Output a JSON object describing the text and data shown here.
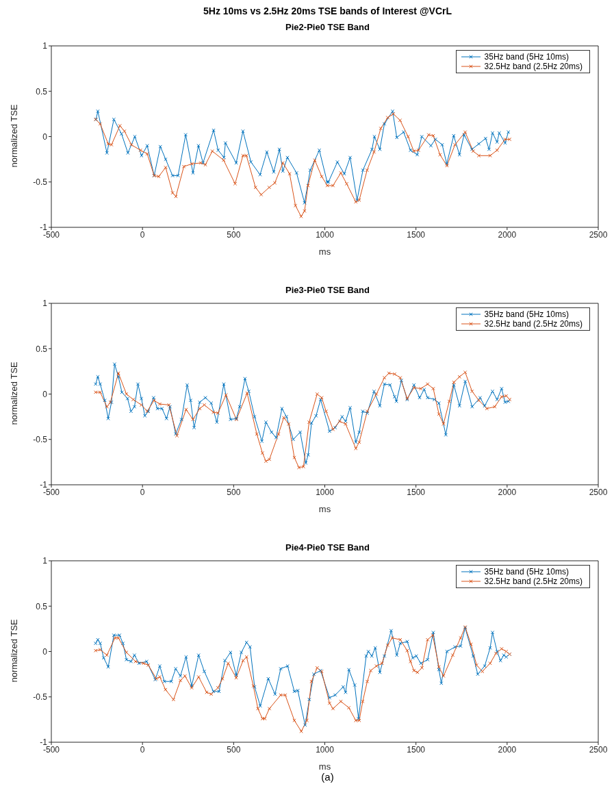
{
  "chart_data": [
    {
      "type": "line",
      "title": "5Hz 10ms vs 2.5Hz 20ms TSE bands of Interest @VCrL",
      "subtitle": "Pie2-Pie0 TSE Band",
      "xlabel": "ms",
      "ylabel": "normalized TSE",
      "xlim": [
        -500,
        2500
      ],
      "xticks": [
        -500,
        0,
        500,
        1000,
        1500,
        2000,
        2500
      ],
      "ylim": [
        -1,
        1
      ],
      "yticks": [
        -1,
        -0.5,
        0,
        0.5,
        1
      ],
      "legend": "top right",
      "marker": "cross",
      "line_style": "solid",
      "series": [
        {
          "name": "35Hz band (5Hz 10ms)",
          "color": "#0072bd",
          "x": [
            -255,
            -245,
            -195,
            -157,
            -115,
            -80,
            -42,
            -5,
            26,
            64,
            98,
            127,
            165,
            195,
            237,
            277,
            307,
            332,
            390,
            415,
            447,
            455,
            514,
            551,
            595,
            645,
            682,
            720,
            751,
            770,
            795,
            845,
            889,
            920,
            970,
            1013,
            1020,
            1069,
            1107,
            1139,
            1177,
            1209,
            1259,
            1272,
            1302,
            1327,
            1372,
            1395,
            1432,
            1470,
            1507,
            1532,
            1582,
            1607,
            1644,
            1669,
            1707,
            1739,
            1764,
            1807,
            1845,
            1882,
            1901,
            1920,
            1945,
            1957,
            1989,
            2007
          ],
          "values": [
            0.19,
            0.28,
            -0.18,
            0.19,
            0.03,
            -0.18,
            0.0,
            -0.21,
            -0.1,
            -0.43,
            -0.11,
            -0.25,
            -0.43,
            -0.43,
            0.02,
            -0.4,
            -0.1,
            -0.29,
            0.07,
            -0.15,
            -0.23,
            -0.07,
            -0.29,
            0.06,
            -0.28,
            -0.42,
            -0.17,
            -0.39,
            -0.14,
            -0.38,
            -0.23,
            -0.4,
            -0.73,
            -0.37,
            -0.15,
            -0.5,
            -0.5,
            -0.28,
            -0.41,
            -0.23,
            -0.7,
            -0.37,
            -0.14,
            0.0,
            -0.14,
            0.14,
            0.28,
            -0.01,
            0.05,
            -0.15,
            -0.2,
            0.0,
            -0.1,
            -0.03,
            -0.09,
            -0.3,
            0.01,
            -0.2,
            0.02,
            -0.14,
            -0.08,
            -0.02,
            -0.14,
            0.04,
            -0.06,
            0.04,
            -0.07,
            0.05
          ]
        },
        {
          "name": "32.5Hz band (2.5Hz 20ms)",
          "color": "#d95319",
          "x": [
            -257,
            -232,
            -188,
            -170,
            -124,
            -99,
            -61,
            -11,
            26,
            64,
            89,
            127,
            165,
            183,
            227,
            271,
            320,
            345,
            383,
            445,
            508,
            551,
            570,
            620,
            651,
            695,
            726,
            770,
            807,
            839,
            870,
            889,
            908,
            945,
            983,
            1014,
            1045,
            1088,
            1120,
            1170,
            1189,
            1232,
            1270,
            1307,
            1345,
            1376,
            1413,
            1457,
            1488,
            1514,
            1570,
            1595,
            1632,
            1670,
            1714,
            1770,
            1814,
            1845,
            1907,
            1945,
            1989,
            2014
          ],
          "values": [
            0.19,
            0.14,
            -0.08,
            -0.09,
            0.12,
            0.06,
            -0.09,
            -0.15,
            -0.19,
            -0.43,
            -0.44,
            -0.34,
            -0.62,
            -0.66,
            -0.33,
            -0.3,
            -0.29,
            -0.31,
            -0.16,
            -0.26,
            -0.52,
            -0.21,
            -0.21,
            -0.56,
            -0.64,
            -0.56,
            -0.51,
            -0.29,
            -0.41,
            -0.76,
            -0.88,
            -0.82,
            -0.54,
            -0.26,
            -0.44,
            -0.54,
            -0.54,
            -0.4,
            -0.52,
            -0.72,
            -0.7,
            -0.37,
            -0.17,
            0.09,
            0.21,
            0.25,
            0.18,
            0.0,
            -0.16,
            -0.15,
            0.02,
            0.01,
            -0.2,
            -0.32,
            -0.09,
            0.05,
            -0.16,
            -0.21,
            -0.21,
            -0.15,
            -0.03,
            -0.03
          ]
        }
      ]
    },
    {
      "type": "line",
      "title": "Pie3-Pie0 TSE Band",
      "xlabel": "ms",
      "ylabel": "normalized TSE",
      "xlim": [
        -500,
        2500
      ],
      "xticks": [
        -500,
        0,
        500,
        1000,
        1500,
        2000,
        2500
      ],
      "ylim": [
        -1,
        1
      ],
      "yticks": [
        -1,
        -0.5,
        0,
        0.5,
        1
      ],
      "legend": "top right",
      "marker": "cross",
      "line_style": "solid",
      "series": [
        {
          "name": "35Hz band (5Hz 10ms)",
          "color": "#0072bd",
          "x": [
            -257,
            -245,
            -232,
            -207,
            -188,
            -170,
            -153,
            -132,
            -113,
            -82,
            -63,
            -44,
            -25,
            -6,
            13,
            32,
            61,
            82,
            107,
            132,
            151,
            182,
            214,
            245,
            264,
            283,
            314,
            345,
            377,
            408,
            446,
            483,
            515,
            533,
            562,
            583,
            615,
            655,
            677,
            708,
            733,
            765,
            790,
            827,
            865,
            896,
            909,
            927,
            952,
            977,
            1026,
            1057,
            1095,
            1114,
            1139,
            1170,
            1189,
            1208,
            1233,
            1270,
            1302,
            1327,
            1358,
            1383,
            1393,
            1420,
            1452,
            1489,
            1520,
            1545,
            1564,
            1601,
            1626,
            1664,
            1708,
            1739,
            1770,
            1808,
            1852,
            1877,
            1920,
            1945,
            1970,
            1989,
            2007
          ],
          "values": [
            0.11,
            0.19,
            0.11,
            -0.07,
            -0.27,
            -0.09,
            0.33,
            0.19,
            0.02,
            -0.05,
            -0.19,
            -0.14,
            0.11,
            -0.05,
            -0.24,
            -0.19,
            -0.04,
            -0.16,
            -0.16,
            -0.27,
            -0.14,
            -0.44,
            -0.28,
            0.1,
            -0.07,
            -0.37,
            -0.09,
            -0.04,
            -0.1,
            -0.31,
            0.11,
            -0.28,
            -0.27,
            -0.14,
            0.17,
            0.03,
            -0.25,
            -0.52,
            -0.31,
            -0.42,
            -0.48,
            -0.16,
            -0.25,
            -0.5,
            -0.42,
            -0.76,
            -0.67,
            -0.32,
            -0.24,
            -0.06,
            -0.41,
            -0.37,
            -0.25,
            -0.3,
            -0.15,
            -0.53,
            -0.42,
            -0.19,
            -0.21,
            0.03,
            -0.13,
            0.11,
            0.1,
            -0.03,
            -0.08,
            0.15,
            -0.06,
            0.1,
            -0.04,
            0.05,
            -0.04,
            -0.06,
            -0.1,
            -0.45,
            0.1,
            -0.13,
            0.14,
            -0.14,
            -0.04,
            -0.13,
            0.03,
            -0.06,
            0.06,
            -0.09,
            -0.08
          ]
        },
        {
          "name": "32.5Hz band (2.5Hz 20ms)",
          "color": "#d95319",
          "x": [
            -257,
            -232,
            -195,
            -176,
            -132,
            -88,
            -51,
            -6,
            26,
            63,
            95,
            145,
            189,
            239,
            277,
            314,
            339,
            389,
            414,
            458,
            515,
            574,
            627,
            658,
            677,
            696,
            746,
            775,
            802,
            833,
            858,
            883,
            914,
            958,
            983,
            1007,
            1045,
            1082,
            1114,
            1170,
            1189,
            1233,
            1283,
            1327,
            1352,
            1383,
            1414,
            1452,
            1489,
            1527,
            1564,
            1595,
            1626,
            1651,
            1683,
            1708,
            1739,
            1770,
            1808,
            1845,
            1889,
            1932,
            1970,
            1995,
            2014
          ],
          "values": [
            0.02,
            0.02,
            -0.14,
            -0.09,
            0.23,
            0.0,
            -0.06,
            -0.12,
            -0.19,
            -0.07,
            -0.11,
            -0.12,
            -0.46,
            -0.17,
            -0.28,
            -0.16,
            -0.12,
            -0.2,
            -0.21,
            -0.01,
            -0.28,
            0.01,
            -0.44,
            -0.65,
            -0.74,
            -0.72,
            -0.44,
            -0.26,
            -0.33,
            -0.7,
            -0.81,
            -0.8,
            -0.31,
            0.0,
            -0.04,
            -0.19,
            -0.39,
            -0.3,
            -0.33,
            -0.6,
            -0.53,
            -0.19,
            0.0,
            0.18,
            0.23,
            0.22,
            0.18,
            -0.05,
            0.07,
            0.06,
            0.11,
            0.06,
            -0.22,
            -0.33,
            -0.08,
            0.13,
            0.19,
            0.24,
            0.03,
            -0.07,
            -0.16,
            -0.14,
            -0.03,
            -0.02,
            -0.06
          ]
        }
      ]
    },
    {
      "type": "line",
      "title": "Pie4-Pie0 TSE Band",
      "xlabel": "ms",
      "ylabel": "normalized TSE",
      "xlim": [
        -500,
        2500
      ],
      "xticks": [
        -500,
        0,
        500,
        1000,
        1500,
        2000,
        2500
      ],
      "ylim": [
        -1,
        1
      ],
      "yticks": [
        -1,
        -0.5,
        0,
        0.5,
        1
      ],
      "legend": "top right",
      "marker": "cross",
      "line_style": "solid",
      "annotations": [
        "(a)"
      ],
      "series": [
        {
          "name": "35Hz band (5Hz 10ms)",
          "color": "#0072bd",
          "x": [
            -257,
            -245,
            -232,
            -213,
            -188,
            -157,
            -126,
            -107,
            -88,
            -63,
            -44,
            -19,
            23,
            70,
            95,
            120,
            158,
            182,
            208,
            239,
            270,
            308,
            339,
            389,
            420,
            452,
            483,
            514,
            542,
            571,
            590,
            615,
            646,
            690,
            727,
            758,
            796,
            833,
            852,
            892,
            915,
            940,
            977,
            1026,
            1057,
            1101,
            1114,
            1132,
            1164,
            1185,
            1227,
            1239,
            1258,
            1277,
            1302,
            1327,
            1364,
            1395,
            1414,
            1452,
            1483,
            1502,
            1527,
            1564,
            1595,
            1626,
            1639,
            1670,
            1714,
            1745,
            1770,
            1814,
            1839,
            1877,
            1907,
            1920,
            1945,
            1964,
            1982,
            1995,
            2014
          ],
          "values": [
            0.09,
            0.13,
            0.09,
            -0.07,
            -0.17,
            0.18,
            0.18,
            0.09,
            -0.09,
            -0.11,
            -0.04,
            -0.13,
            -0.11,
            -0.31,
            -0.16,
            -0.33,
            -0.33,
            -0.19,
            -0.27,
            -0.06,
            -0.38,
            -0.04,
            -0.22,
            -0.44,
            -0.44,
            -0.1,
            -0.01,
            -0.26,
            -0.01,
            0.1,
            0.05,
            -0.39,
            -0.6,
            -0.3,
            -0.47,
            -0.19,
            -0.16,
            -0.44,
            -0.43,
            -0.81,
            -0.53,
            -0.25,
            -0.21,
            -0.51,
            -0.48,
            -0.39,
            -0.45,
            -0.2,
            -0.37,
            -0.74,
            -0.05,
            0.0,
            -0.05,
            0.04,
            -0.23,
            -0.05,
            0.23,
            -0.04,
            0.09,
            0.11,
            -0.07,
            -0.05,
            -0.13,
            -0.09,
            0.21,
            -0.2,
            -0.35,
            0.0,
            0.05,
            0.06,
            0.26,
            -0.05,
            -0.25,
            -0.16,
            0.04,
            0.21,
            0.0,
            -0.1,
            -0.04,
            -0.06,
            -0.03
          ]
        },
        {
          "name": "32.5Hz band (2.5Hz 20ms)",
          "color": "#d95319",
          "x": [
            -257,
            -232,
            -195,
            -151,
            -132,
            -88,
            -38,
            6,
            32,
            76,
            95,
            126,
            170,
            208,
            233,
            270,
            308,
            352,
            377,
            414,
            439,
            470,
            514,
            552,
            571,
            608,
            633,
            658,
            671,
            696,
            758,
            783,
            833,
            871,
            902,
            927,
            958,
            983,
            1026,
            1045,
            1088,
            1132,
            1170,
            1189,
            1208,
            1233,
            1252,
            1283,
            1314,
            1345,
            1370,
            1414,
            1452,
            1470,
            1489,
            1508,
            1533,
            1564,
            1592,
            1626,
            1651,
            1702,
            1745,
            1770,
            1802,
            1833,
            1864,
            1907,
            1939,
            1970,
            1995,
            2014
          ],
          "values": [
            0.01,
            0.02,
            -0.04,
            0.15,
            0.15,
            -0.01,
            -0.11,
            -0.13,
            -0.15,
            -0.3,
            -0.28,
            -0.42,
            -0.53,
            -0.32,
            -0.27,
            -0.4,
            -0.28,
            -0.45,
            -0.47,
            -0.4,
            -0.3,
            -0.13,
            -0.29,
            -0.1,
            -0.06,
            -0.38,
            -0.63,
            -0.74,
            -0.74,
            -0.63,
            -0.48,
            -0.48,
            -0.76,
            -0.88,
            -0.76,
            -0.33,
            -0.18,
            -0.22,
            -0.57,
            -0.63,
            -0.55,
            -0.62,
            -0.76,
            -0.76,
            -0.55,
            -0.33,
            -0.21,
            -0.16,
            -0.13,
            0.07,
            0.15,
            0.13,
            0.01,
            -0.11,
            -0.21,
            -0.23,
            -0.18,
            0.13,
            0.18,
            -0.17,
            -0.27,
            -0.04,
            0.15,
            0.27,
            0.08,
            -0.15,
            -0.22,
            -0.13,
            -0.02,
            0.03,
            0.0,
            -0.03
          ]
        }
      ]
    }
  ]
}
